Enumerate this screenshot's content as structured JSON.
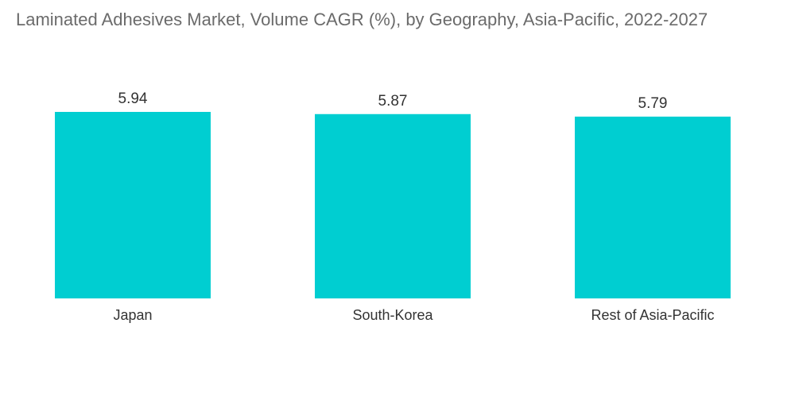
{
  "chart_data": {
    "type": "bar",
    "title": "Laminated Adhesives Market, Volume CAGR (%), by Geography, Asia-Pacific, 2022-2027",
    "categories": [
      "Japan",
      "South-Korea",
      "Rest of Asia-Pacific"
    ],
    "values": [
      5.94,
      5.87,
      5.79
    ],
    "value_labels": [
      "5.94",
      "5.87",
      "5.79"
    ],
    "bar_color": "#00CED1",
    "xlabel": "",
    "ylabel": "",
    "ylim": [
      0,
      5.94
    ],
    "grid": false,
    "legend": "none"
  }
}
